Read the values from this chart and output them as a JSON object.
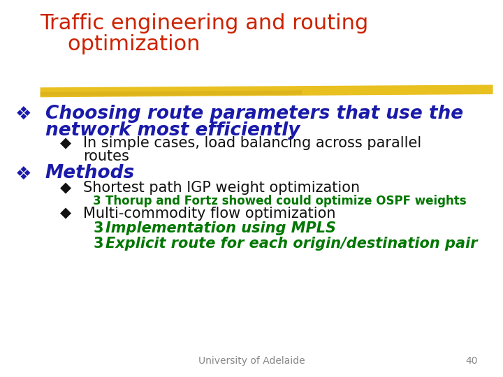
{
  "title_line1": "Traffic engineering and routing",
  "title_line2": "    optimization",
  "title_color": "#cc2200",
  "title_fontsize": 22,
  "bg_color": "#ffffff",
  "highlight_color": "#e8c020",
  "bullet1_color": "#1a1aaa",
  "bullet1_fontsize": 19,
  "sub1_color": "#111111",
  "sub1_fontsize": 15,
  "bullet2_color": "#1a1aaa",
  "bullet2_fontsize": 19,
  "sub2_color": "#111111",
  "sub2_fontsize": 15,
  "sub2a_text": "Thorup and Fortz showed could optimize OSPF weights",
  "sub2a_color": "#007700",
  "sub2a_fontsize": 12,
  "sub3_color": "#111111",
  "sub3_fontsize": 15,
  "sub3a_text": "Implementation using MPLS",
  "sub3a_color": "#007700",
  "sub3a_fontsize": 15,
  "sub3b_text": "Explicit route for each origin/destination pair",
  "sub3b_color": "#007700",
  "sub3b_fontsize": 15,
  "footer_text": "University of Adelaide",
  "footer_number": "40",
  "footer_color": "#888888",
  "footer_fontsize": 10
}
